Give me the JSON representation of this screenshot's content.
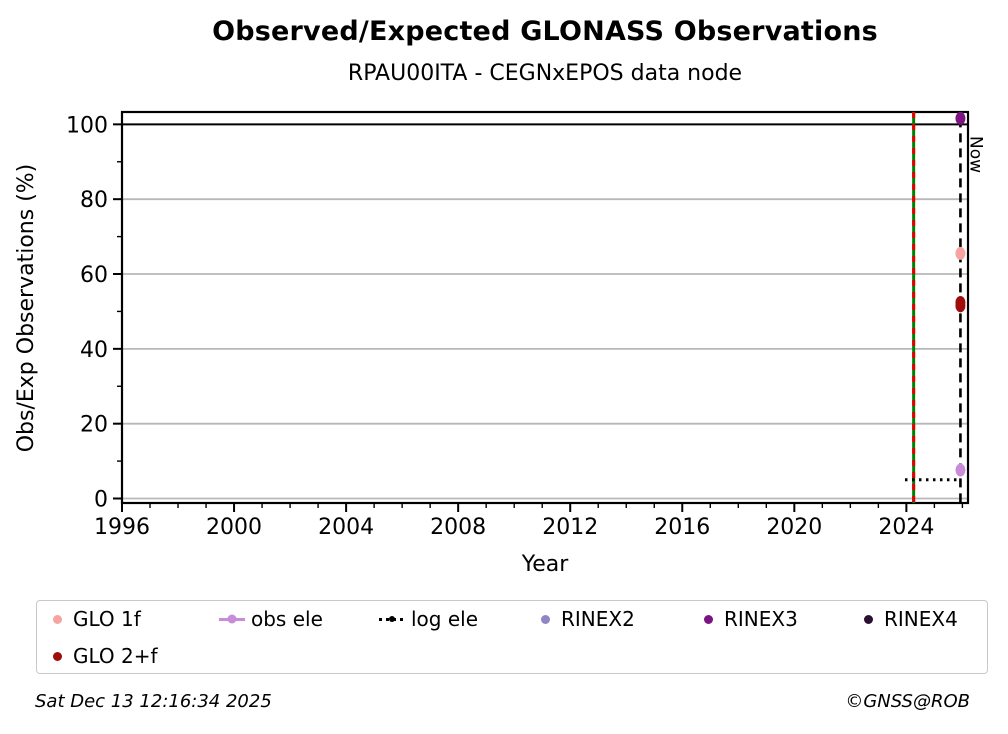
{
  "footer": {
    "timestamp": "Sat Dec 13 12:16:34 2025",
    "copyright": "©GNSS@ROB"
  },
  "chart_data": {
    "type": "scatter",
    "title": "Observed/Expected GLONASS Observations",
    "subtitle": "RPAU00ITA - CEGNxEPOS data node",
    "xlabel": "Year",
    "ylabel": "Obs/Exp Observations (%)",
    "xlim": [
      1996,
      2026.2
    ],
    "ylim": [
      -1.2,
      103.3
    ],
    "x_major_ticks": [
      1996,
      2000,
      2004,
      2008,
      2012,
      2016,
      2020,
      2024
    ],
    "x_minor_step": 1,
    "y_major_ticks": [
      0,
      20,
      40,
      60,
      80,
      100
    ],
    "y_minor_step": 10,
    "grid": {
      "y_values": [
        0,
        20,
        40,
        60,
        80
      ],
      "color": "#b8b8b8"
    },
    "reference_line": {
      "y": 100,
      "color": "#000000"
    },
    "vlines": [
      {
        "name": "station-event",
        "x": 2024.26,
        "base_color": "#008000",
        "dash_color": "#e00000"
      },
      {
        "name": "now",
        "x": 2025.93,
        "color": "#000000",
        "label": "Now"
      }
    ],
    "segments": [
      {
        "name": "log ele",
        "x1": 2023.95,
        "x2": 2025.93,
        "y": 5,
        "color": "#000000",
        "style": "dotted"
      }
    ],
    "series": [
      {
        "name": "GLO 1f",
        "color": "#f6a3a2",
        "points": [
          {
            "x": 2025.93,
            "y": 65.5
          }
        ]
      },
      {
        "name": "GLO 2+f",
        "color": "#a00b0b",
        "points": [
          {
            "x": 2025.93,
            "y": 51.5
          },
          {
            "x": 2025.93,
            "y": 52.4
          }
        ]
      },
      {
        "name": "obs ele",
        "color": "#c88dd8",
        "points": [
          {
            "x": 2025.93,
            "y": 7.6
          }
        ]
      },
      {
        "name": "RINEX2",
        "color": "#8f87c3",
        "points": []
      },
      {
        "name": "RINEX3",
        "color": "#7c1382",
        "points": [
          {
            "x": 2025.93,
            "y": 101.6
          }
        ]
      },
      {
        "name": "RINEX4",
        "color": "#2a1030",
        "points": []
      }
    ],
    "legend": {
      "position": "bottom",
      "items": [
        {
          "label": "GLO 1f",
          "marker": "dot",
          "color": "#f6a3a2"
        },
        {
          "label": "obs ele",
          "marker": "dot-line",
          "color": "#c88dd8"
        },
        {
          "label": "log ele",
          "marker": "dot-dotted-line",
          "color": "#000000"
        },
        {
          "label": "RINEX2",
          "marker": "dot",
          "color": "#8f87c3"
        },
        {
          "label": "RINEX3",
          "marker": "dot",
          "color": "#7c1382"
        },
        {
          "label": "RINEX4",
          "marker": "dot",
          "color": "#2a1030"
        },
        {
          "label": "GLO 2+f",
          "marker": "dot",
          "color": "#a00b0b"
        }
      ]
    }
  }
}
